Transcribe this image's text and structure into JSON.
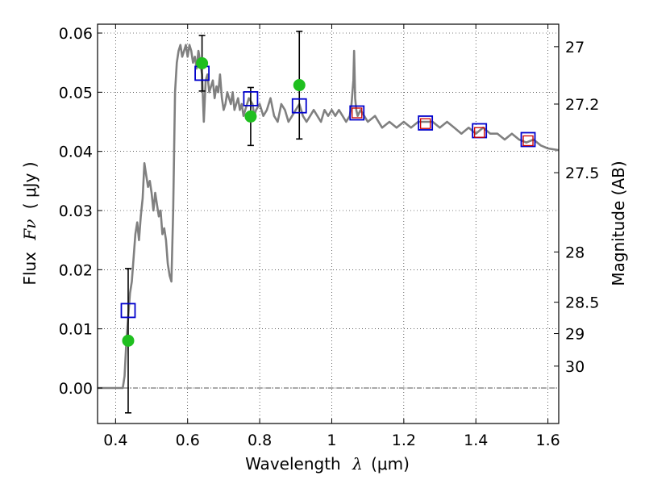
{
  "chart_data": {
    "type": "line",
    "title": "",
    "xlabel_prefix": "Wavelength",
    "xlabel_symbol": "λ",
    "xlabel_unit": "(μm)",
    "ylabel_prefix": "Flux",
    "ylabel_symbol": "Fν",
    "ylabel_unit": "( μJy )",
    "y2label": "Magnitude (AB)",
    "xlim": [
      0.35,
      1.63
    ],
    "ylim": [
      -0.006,
      0.0615
    ],
    "grid": true,
    "xticks": [
      0.4,
      0.6,
      0.8,
      1.0,
      1.2,
      1.4,
      1.6
    ],
    "xtick_labels": [
      "0.4",
      "0.6",
      "0.8",
      "1",
      "1.2",
      "1.4",
      "1.6"
    ],
    "yticks": [
      0.0,
      0.01,
      0.02,
      0.03,
      0.04,
      0.05,
      0.06
    ],
    "ytick_labels": [
      "0.00",
      "0.01",
      "0.02",
      "0.03",
      "0.04",
      "0.05",
      "0.06"
    ],
    "y2ticks": [
      {
        "label": "27",
        "flux": 0.0577
      },
      {
        "label": "27.2",
        "flux": 0.048
      },
      {
        "label": "27.5",
        "flux": 0.0364
      },
      {
        "label": "28",
        "flux": 0.023
      },
      {
        "label": "28.5",
        "flux": 0.0145
      },
      {
        "label": "29",
        "flux": 0.0092
      },
      {
        "label": "30",
        "flux": 0.0037
      }
    ],
    "series": [
      {
        "kind": "model-spectrum",
        "color": "#808080",
        "x": [
          0.35,
          0.42,
          0.425,
          0.43,
          0.435,
          0.44,
          0.445,
          0.45,
          0.455,
          0.46,
          0.465,
          0.47,
          0.475,
          0.48,
          0.485,
          0.49,
          0.495,
          0.5,
          0.505,
          0.51,
          0.515,
          0.52,
          0.525,
          0.53,
          0.535,
          0.54,
          0.545,
          0.55,
          0.555,
          0.56,
          0.565,
          0.57,
          0.575,
          0.58,
          0.585,
          0.59,
          0.595,
          0.6,
          0.605,
          0.61,
          0.615,
          0.62,
          0.625,
          0.63,
          0.635,
          0.64,
          0.645,
          0.65,
          0.655,
          0.66,
          0.665,
          0.67,
          0.675,
          0.68,
          0.685,
          0.69,
          0.695,
          0.7,
          0.705,
          0.71,
          0.715,
          0.72,
          0.725,
          0.73,
          0.735,
          0.74,
          0.745,
          0.75,
          0.755,
          0.76,
          0.77,
          0.78,
          0.785,
          0.79,
          0.8,
          0.81,
          0.82,
          0.83,
          0.84,
          0.85,
          0.86,
          0.87,
          0.88,
          0.89,
          0.9,
          0.91,
          0.92,
          0.93,
          0.94,
          0.95,
          0.96,
          0.97,
          0.98,
          0.99,
          1.0,
          1.01,
          1.02,
          1.03,
          1.04,
          1.05,
          1.055,
          1.06,
          1.062,
          1.065,
          1.068,
          1.072,
          1.08,
          1.09,
          1.1,
          1.12,
          1.14,
          1.16,
          1.18,
          1.2,
          1.22,
          1.24,
          1.26,
          1.28,
          1.3,
          1.32,
          1.34,
          1.36,
          1.38,
          1.4,
          1.42,
          1.44,
          1.46,
          1.48,
          1.5,
          1.52,
          1.54,
          1.56,
          1.58,
          1.6,
          1.63
        ],
        "y": [
          0.0,
          0.0,
          0.002,
          0.008,
          0.012,
          0.016,
          0.018,
          0.022,
          0.026,
          0.028,
          0.025,
          0.029,
          0.032,
          0.038,
          0.036,
          0.034,
          0.035,
          0.033,
          0.03,
          0.033,
          0.031,
          0.029,
          0.03,
          0.026,
          0.027,
          0.025,
          0.021,
          0.019,
          0.018,
          0.03,
          0.05,
          0.055,
          0.057,
          0.058,
          0.056,
          0.057,
          0.058,
          0.056,
          0.058,
          0.057,
          0.055,
          0.056,
          0.054,
          0.057,
          0.055,
          0.053,
          0.045,
          0.052,
          0.053,
          0.05,
          0.051,
          0.052,
          0.049,
          0.051,
          0.05,
          0.053,
          0.049,
          0.047,
          0.048,
          0.05,
          0.049,
          0.048,
          0.05,
          0.047,
          0.048,
          0.049,
          0.047,
          0.048,
          0.046,
          0.047,
          0.049,
          0.048,
          0.046,
          0.047,
          0.048,
          0.046,
          0.047,
          0.049,
          0.046,
          0.045,
          0.048,
          0.047,
          0.045,
          0.046,
          0.047,
          0.048,
          0.046,
          0.045,
          0.046,
          0.047,
          0.046,
          0.045,
          0.047,
          0.046,
          0.047,
          0.046,
          0.047,
          0.046,
          0.045,
          0.046,
          0.048,
          0.052,
          0.057,
          0.049,
          0.047,
          0.046,
          0.047,
          0.046,
          0.045,
          0.046,
          0.044,
          0.045,
          0.044,
          0.045,
          0.044,
          0.045,
          0.045,
          0.045,
          0.044,
          0.045,
          0.044,
          0.043,
          0.044,
          0.043,
          0.044,
          0.043,
          0.043,
          0.042,
          0.043,
          0.042,
          0.0415,
          0.042,
          0.041,
          0.0405,
          0.0402
        ]
      },
      {
        "kind": "observed",
        "color": "#1fbf1f",
        "marker": "circle",
        "x": [
          0.435,
          0.64,
          0.775,
          0.91
        ],
        "y": [
          0.008,
          0.0549,
          0.0459,
          0.0512
        ],
        "err": [
          0.0122,
          0.0047,
          0.0049,
          0.0091
        ]
      },
      {
        "kind": "model-broadband",
        "color": "#0000cc",
        "marker": "square",
        "x": [
          0.435,
          0.64,
          0.775,
          0.91,
          1.07,
          1.26,
          1.41,
          1.545
        ],
        "y": [
          0.0131,
          0.0532,
          0.0489,
          0.0477,
          0.0465,
          0.0448,
          0.0435,
          0.042
        ]
      },
      {
        "kind": "model-broadband-alt",
        "color": "#cc0000",
        "marker": "square",
        "x": [
          1.07,
          1.26,
          1.41,
          1.545
        ],
        "y": [
          0.0465,
          0.0447,
          0.0432,
          0.0418
        ]
      }
    ]
  }
}
